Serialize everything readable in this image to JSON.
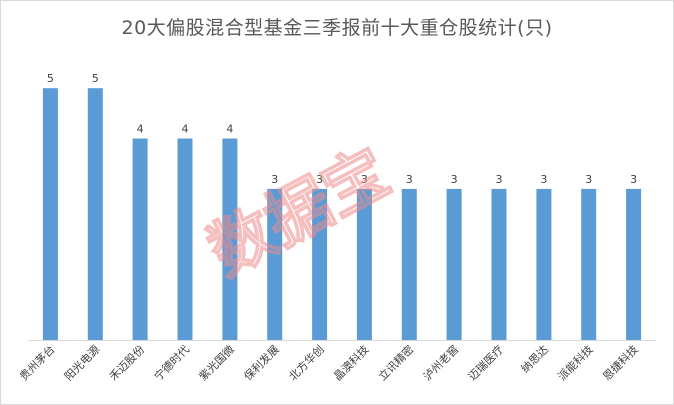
{
  "chart_data": {
    "type": "bar",
    "title": "20大偏股混合型基金三季报前十大重仓股统计(只)",
    "categories": [
      "贵州茅台",
      "阳光电源",
      "禾迈股份",
      "宁德时代",
      "紫光国微",
      "保利发展",
      "北方华创",
      "晶澳科技",
      "立讯精密",
      "泸州老窖",
      "迈瑞医疗",
      "纳思达",
      "派能科技",
      "恩捷科技"
    ],
    "values": [
      5,
      5,
      4,
      4,
      4,
      3,
      3,
      3,
      3,
      3,
      3,
      3,
      3,
      3
    ],
    "xlabel": "",
    "ylabel": "",
    "ylim": [
      0,
      5.5
    ],
    "grid": false,
    "bar_color": "#5b9bd5"
  },
  "watermark": {
    "text": "数据宝",
    "color": "#f08c8c"
  }
}
